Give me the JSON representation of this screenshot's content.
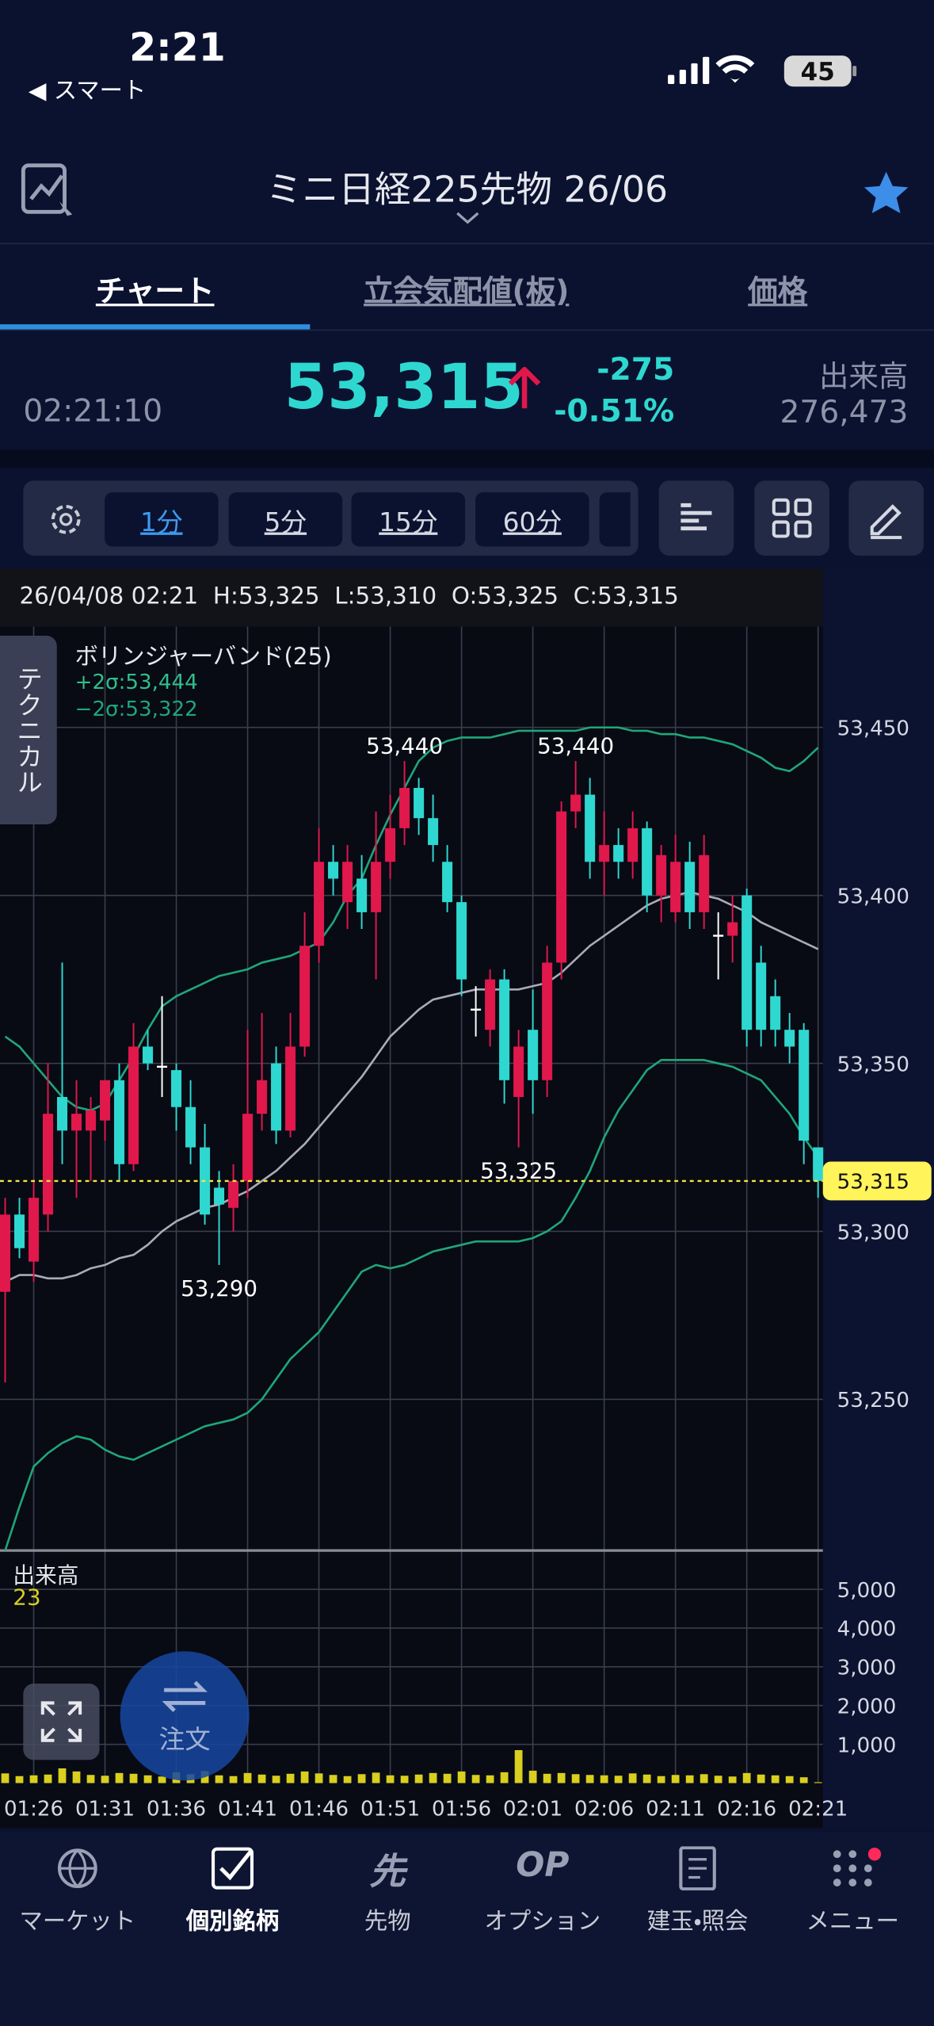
{
  "status": {
    "time": "2:21",
    "back": "◀ スマート",
    "battery": "45"
  },
  "header": {
    "title": "ミニ日経225先物 26/06"
  },
  "tabs": [
    "チャート",
    "立会気配値(板)",
    "価格"
  ],
  "quote": {
    "time": "02:21:10",
    "price": "53,315",
    "change": "-275",
    "change_pct": "-0.51%",
    "volume_label": "出来高",
    "volume": "276,473"
  },
  "intervals": [
    "1分",
    "5分",
    "15分",
    "60分"
  ],
  "side_tab": "テクニカル",
  "order_button": "注文",
  "nav": [
    {
      "label": "マーケット"
    },
    {
      "label": "個別銘柄"
    },
    {
      "label": "先物",
      "icon": "先"
    },
    {
      "label": "オプション",
      "icon": "OP"
    },
    {
      "label": "建玉・照会"
    },
    {
      "label": "メニュー"
    }
  ],
  "chart_data": {
    "type": "candlestick",
    "info_date": "26/04/08 02:21",
    "info_ohlc": [
      "H:53,325",
      "L:53,310",
      "O:53,325",
      "C:53,315"
    ],
    "indicator": "ボリンジャーバンド(25)",
    "indicator_legend": [
      {
        "text": "+2σ:53,444",
        "color": "#2fbf8a"
      },
      {
        "text": "−2σ:53,322",
        "color": "#1fa67a"
      }
    ],
    "volume_label": "出来高",
    "up_color": "#e0184c",
    "down_color": "#2ed8d0",
    "doji_color": "#ffffff",
    "volume_color": "#d8cf1e",
    "categories": [
      null,
      null,
      "01:26",
      null,
      null,
      null,
      null,
      "01:31",
      null,
      null,
      null,
      null,
      "01:36",
      null,
      null,
      null,
      null,
      "01:41",
      null,
      null,
      null,
      null,
      "01:46",
      null,
      null,
      null,
      null,
      "01:51",
      null,
      null,
      null,
      null,
      "01:56",
      null,
      null,
      null,
      null,
      "02:01",
      null,
      null,
      null,
      null,
      "02:06",
      null,
      null,
      null,
      null,
      "02:11",
      null,
      null,
      null,
      null,
      "02:16",
      null,
      null,
      null,
      null,
      "02:21"
    ],
    "open": [
      53282,
      53305,
      53291,
      53305,
      53340,
      53330,
      53330,
      53333,
      53345,
      53320,
      53355,
      53349,
      53348,
      53337,
      53325,
      53313,
      53307,
      53315,
      53335,
      53350,
      53330,
      53355,
      53385,
      53410,
      53398,
      53405,
      53395,
      53410,
      53420,
      53432,
      53423,
      53410,
      53398,
      53366,
      53360,
      53375,
      53340,
      53360,
      53345,
      53380,
      53425,
      53430,
      53410,
      53415,
      53410,
      53420,
      53400,
      53395,
      53410,
      53395,
      53388,
      53388,
      53400,
      53380,
      53370,
      53360,
      53360,
      53325
    ],
    "high": [
      53310,
      53310,
      53315,
      53350,
      53380,
      53345,
      53340,
      53345,
      53350,
      53362,
      53360,
      53370,
      53350,
      53345,
      53332,
      53318,
      53320,
      53360,
      53365,
      53355,
      53365,
      53395,
      53420,
      53415,
      53415,
      53412,
      53425,
      53430,
      53440,
      53435,
      53430,
      53415,
      53400,
      53373,
      53378,
      53378,
      53360,
      53372,
      53385,
      53428,
      53440,
      53435,
      53425,
      53420,
      53425,
      53422,
      53415,
      53418,
      53416,
      53418,
      53395,
      53400,
      53402,
      53385,
      53375,
      53365,
      53362,
      53325
    ],
    "low": [
      53255,
      53292,
      53285,
      53300,
      53320,
      53310,
      53315,
      53327,
      53315,
      53318,
      53348,
      53340,
      53330,
      53320,
      53302,
      53290,
      53300,
      53310,
      53330,
      53326,
      53328,
      53352,
      53380,
      53400,
      53390,
      53390,
      53375,
      53405,
      53415,
      53418,
      53410,
      53395,
      53370,
      53358,
      53355,
      53338,
      53325,
      53335,
      53340,
      53375,
      53420,
      53405,
      53400,
      53405,
      53405,
      53395,
      53392,
      53392,
      53390,
      53390,
      53375,
      53380,
      53355,
      53355,
      53355,
      53350,
      53320,
      53310
    ],
    "close": [
      53305,
      53295,
      53310,
      53335,
      53330,
      53335,
      53336,
      53345,
      53320,
      53355,
      53350,
      53349,
      53337,
      53325,
      53305,
      53308,
      53315,
      53335,
      53345,
      53330,
      53355,
      53385,
      53410,
      53405,
      53410,
      53395,
      53410,
      53420,
      53432,
      53423,
      53415,
      53398,
      53375,
      53366,
      53375,
      53345,
      53355,
      53345,
      53380,
      53425,
      53430,
      53410,
      53415,
      53410,
      53420,
      53400,
      53412,
      53410,
      53395,
      53412,
      53388,
      53392,
      53360,
      53360,
      53360,
      53355,
      53327,
      53315
    ],
    "volume": [
      250,
      180,
      200,
      220,
      380,
      300,
      210,
      190,
      260,
      240,
      200,
      170,
      280,
      230,
      310,
      200,
      180,
      260,
      220,
      190,
      240,
      300,
      250,
      210,
      180,
      230,
      270,
      200,
      190,
      220,
      260,
      240,
      300,
      210,
      200,
      280,
      850,
      320,
      240,
      260,
      230,
      210,
      200,
      190,
      250,
      220,
      180,
      210,
      200,
      230,
      190,
      170,
      260,
      220,
      200,
      180,
      150,
      23
    ],
    "bands": [
      {
        "color": "#1fa67a",
        "values": [
          53358,
          53355,
          53350,
          53345,
          53340,
          53337,
          53336,
          53338,
          53345,
          53352,
          53360,
          53367,
          53370,
          53372,
          53374,
          53376,
          53377,
          53378,
          53380,
          53381,
          53382,
          53384,
          53386,
          53392,
          53400,
          53405,
          53415,
          53424,
          53432,
          53440,
          53444,
          53446,
          53447,
          53447,
          53447,
          53448,
          53449,
          53449,
          53449,
          53449,
          53449,
          53450,
          53450,
          53450,
          53449,
          53449,
          53448,
          53448,
          53447,
          53447,
          53446,
          53445,
          53443,
          53441,
          53438,
          53437,
          53440,
          53444
        ]
      },
      {
        "color": "#a9acb6",
        "values": [
          53285,
          53287,
          53287,
          53286,
          53286,
          53287,
          53289,
          53290,
          53292,
          53293,
          53296,
          53300,
          53303,
          53305,
          53307,
          53308,
          53310,
          53312,
          53315,
          53318,
          53322,
          53326,
          53331,
          53336,
          53341,
          53346,
          53352,
          53358,
          53362,
          53366,
          53369,
          53370,
          53371,
          53372,
          53372,
          53372,
          53372,
          53373,
          53374,
          53377,
          53381,
          53385,
          53388,
          53391,
          53394,
          53397,
          53399,
          53400,
          53401,
          53400,
          53399,
          53397,
          53395,
          53392,
          53390,
          53388,
          53386,
          53384
        ]
      },
      {
        "color": "#1fa67a",
        "values": [
          53205,
          53218,
          53230,
          53234,
          53237,
          53239,
          53238,
          53235,
          53233,
          53232,
          53234,
          53236,
          53238,
          53240,
          53242,
          53243,
          53244,
          53246,
          53250,
          53256,
          53262,
          53266,
          53270,
          53276,
          53282,
          53288,
          53290,
          53289,
          53290,
          53292,
          53294,
          53295,
          53296,
          53297,
          53297,
          53297,
          53297,
          53298,
          53300,
          53303,
          53310,
          53318,
          53328,
          53336,
          53342,
          53348,
          53351,
          53351,
          53351,
          53351,
          53350,
          53349,
          53347,
          53345,
          53340,
          53335,
          53328,
          53322
        ]
      }
    ],
    "annotations": [
      {
        "value": 53290,
        "label": "53,290"
      },
      {
        "value": 53440,
        "label": "53,440"
      },
      {
        "value": 53325,
        "label": "53,325"
      },
      {
        "value": 53440,
        "label": "53,440"
      }
    ],
    "last_price": {
      "value": 53315,
      "label": "53,315"
    },
    "ylim": [
      53205,
      53480
    ],
    "yticks": [
      {
        "value": 53250,
        "label": "53,250"
      },
      {
        "value": 53300,
        "label": "53,300"
      },
      {
        "value": 53350,
        "label": "53,350"
      },
      {
        "value": 53400,
        "label": "53,400"
      },
      {
        "value": 53450,
        "label": "53,450"
      }
    ],
    "volume_ylim": [
      0,
      6000
    ],
    "volume_yticks": [
      {
        "value": 1000,
        "label": "1,000"
      },
      {
        "value": 2000,
        "label": "2,000"
      },
      {
        "value": 3000,
        "label": "3,000"
      },
      {
        "value": 4000,
        "label": "4,000"
      },
      {
        "value": 5000,
        "label": "5,000"
      }
    ],
    "grid": true
  }
}
